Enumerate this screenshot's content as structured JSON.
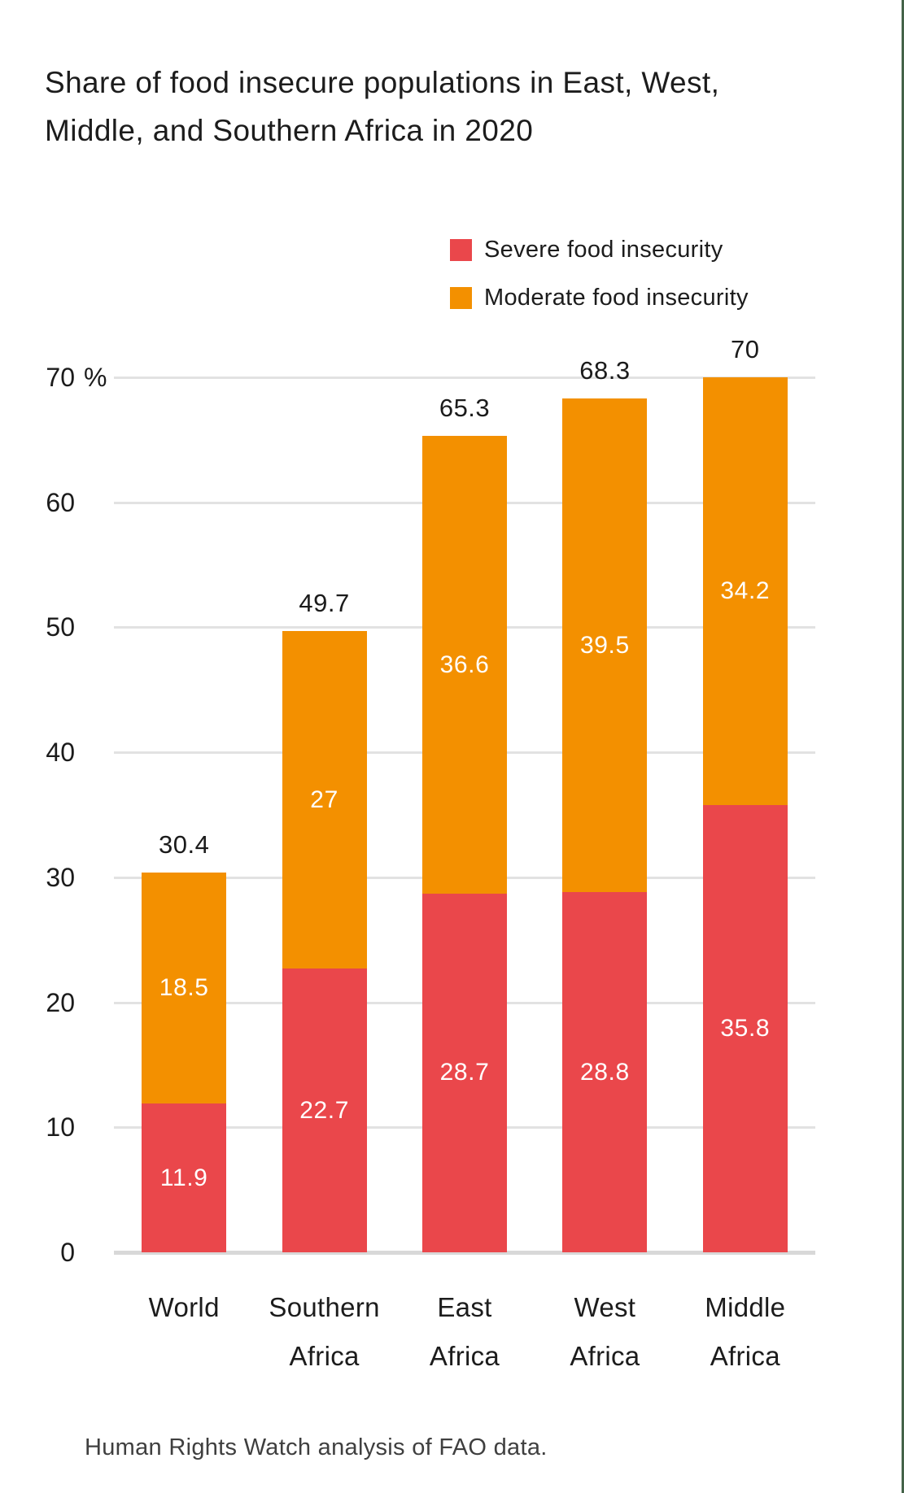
{
  "title": {
    "line1": "Share of food insecure populations in East, West,",
    "line2": "Middle, and Southern Africa in 2020"
  },
  "legend": {
    "items": [
      {
        "label": "Severe food insecurity",
        "color": "#EA474B"
      },
      {
        "label": "Moderate food insecurity",
        "color": "#F39000"
      }
    ]
  },
  "source_note": "Human Rights Watch analysis of FAO data.",
  "colors": {
    "severe": "#EA474B",
    "moderate": "#F39000",
    "gridline": "#E2E2E2",
    "baseline": "#D8D8D8",
    "text": "#1C1C1C",
    "segment_label_text": "#FFFFFF",
    "right_border": "#446349",
    "background": "#FFFFFF"
  },
  "chart_data": {
    "type": "bar",
    "stacked": true,
    "title": "Share of food insecure populations in East, West, Middle, and Southern Africa in 2020",
    "categories": [
      "World",
      "Southern Africa",
      "East Africa",
      "West Africa",
      "Middle Africa"
    ],
    "series": [
      {
        "name": "Severe food insecurity",
        "color": "#EA474B",
        "values": [
          11.9,
          22.7,
          28.7,
          28.8,
          35.8
        ],
        "labels": [
          "11.9",
          "22.7",
          "28.7",
          "28.8",
          "35.8"
        ]
      },
      {
        "name": "Moderate food insecurity",
        "color": "#F39000",
        "values": [
          18.5,
          27,
          36.6,
          39.5,
          34.2
        ],
        "labels": [
          "18.5",
          "27",
          "36.6",
          "39.5",
          "34.2"
        ]
      }
    ],
    "totals": [
      "30.4",
      "49.7",
      "65.3",
      "68.3",
      "70"
    ],
    "total_values": [
      30.4,
      49.7,
      65.3,
      68.3,
      70
    ],
    "y_axis": {
      "min": 0,
      "max": 70,
      "step": 10,
      "unit": "%",
      "tick_labels": [
        "0",
        "10",
        "20",
        "30",
        "40",
        "50",
        "60",
        "70"
      ]
    },
    "xlabel": "",
    "ylabel": "",
    "grid": true,
    "legend_position": "top-right"
  }
}
